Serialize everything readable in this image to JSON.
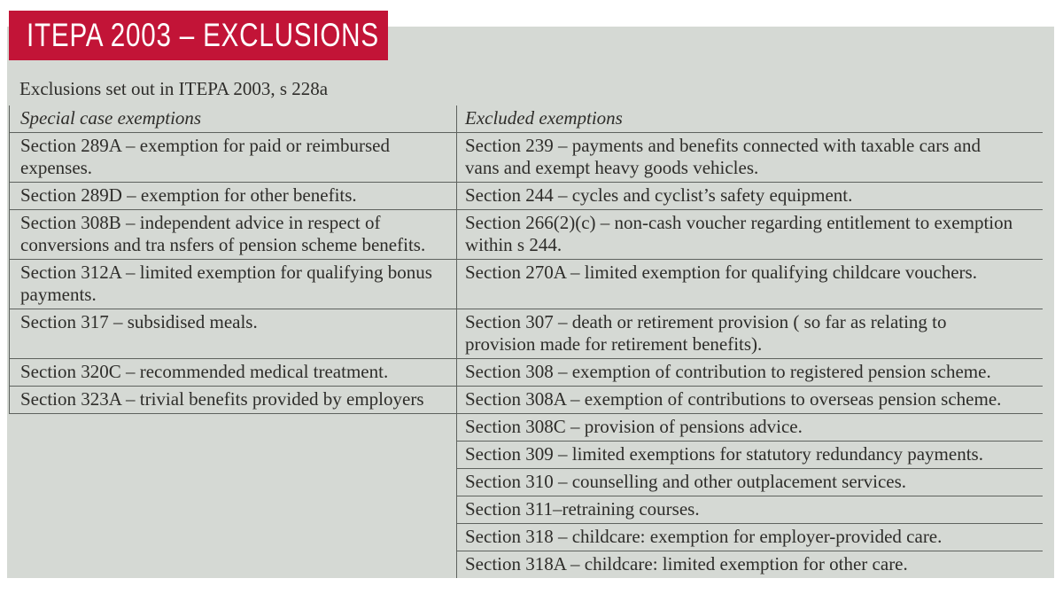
{
  "banner": {
    "title": "ITEPA 2003 – EXCLUSIONS"
  },
  "intro": "Exclusions set out in ITEPA 2003, s 228a",
  "table": {
    "columns": [
      {
        "header": "Special case exemptions"
      },
      {
        "header": "Excluded exemptions"
      }
    ],
    "rows": [
      {
        "left": "Section 289A – exemption for paid or reimbursed expenses.",
        "right": "Section 239 – payments and benefits connected with taxable cars and vans and exempt heavy goods vehicles."
      },
      {
        "left": "Section 289D – exemption for other benefits.",
        "right": "Section 244 – cycles and cyclist’s safety equipment."
      },
      {
        "left": "Section 308B – independent advice in respect of conversions and tra nsfers of pension scheme benefits.",
        "right": "Section 266(2)(c) – non-cash voucher regarding entitlement to exemption within s 244."
      },
      {
        "left": "Section 312A – limited exemption for qualifying bonus payments.",
        "right": "Section 270A – limited exemption for qualifying childcare vouchers."
      },
      {
        "left": "Section 317 – subsidised meals.",
        "right": "Section 307 – death or retirement provision ( so far as relating to provision made for retirement benefits)."
      },
      {
        "left": "Section 320C – recommended medical treatment.",
        "right": "Section 308 – exemption of contribution to registered pension scheme."
      },
      {
        "left": "Section 323A – trivial benefits provided by employers",
        "right": "Section 308A – exemption of contributions to overseas pension scheme."
      },
      {
        "left": "",
        "right": "Section 308C – provision of pensions advice."
      },
      {
        "left": "",
        "right": "Section 309 – limited exemptions for statutory redundancy payments."
      },
      {
        "left": "",
        "right": "Section 310 – counselling and other outplacement services."
      },
      {
        "left": "",
        "right": "Section 311–retraining courses."
      },
      {
        "left": "",
        "right": "Section 318 – childcare: exemption for employer-provided care."
      },
      {
        "left": "",
        "right": "Section 318A – childcare: limited exemption for other care."
      }
    ]
  },
  "colors": {
    "banner_bg": "#c21437",
    "banner_text": "#ffffff",
    "panel_bg": "#d5d9d4",
    "text": "#2e2d2a",
    "line": "#5e625e"
  }
}
